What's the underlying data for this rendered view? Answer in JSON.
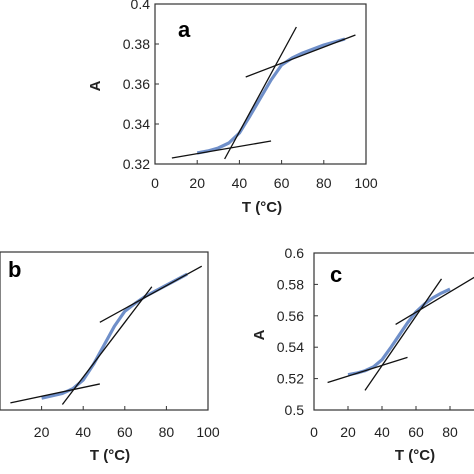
{
  "chart_data": [
    {
      "type": "line",
      "panel_label": "a",
      "xlabel": "T (°C)",
      "ylabel": "A",
      "xlim": [
        0,
        100
      ],
      "ylim": [
        0.32,
        0.4
      ],
      "xticks": [
        "0",
        "20",
        "40",
        "60",
        "80",
        "100"
      ],
      "yticks": [
        "0.32",
        "0.34",
        "0.36",
        "0.38",
        "0.4"
      ],
      "series": [
        {
          "x": [
            20,
            25,
            30,
            35,
            40,
            45,
            50,
            55,
            60,
            65,
            70,
            75,
            80,
            85,
            90
          ],
          "y": [
            0.3255,
            0.3265,
            0.328,
            0.3305,
            0.3355,
            0.344,
            0.353,
            0.362,
            0.3695,
            0.373,
            0.3755,
            0.3775,
            0.3795,
            0.381,
            0.3825
          ]
        }
      ],
      "tangents": [
        {
          "x": [
            8,
            55
          ],
          "y": [
            0.323,
            0.3315
          ]
        },
        {
          "x": [
            33,
            67
          ],
          "y": [
            0.3225,
            0.3885
          ]
        },
        {
          "x": [
            43,
            95
          ],
          "y": [
            0.3635,
            0.3845
          ]
        }
      ]
    },
    {
      "type": "line",
      "panel_label": "b",
      "xlabel": "T (°C)",
      "ylabel": "",
      "xlim": [
        0,
        100
      ],
      "ylim": [
        0.5,
        0.6
      ],
      "xticks": [
        "20",
        "40",
        "60",
        "80",
        "100"
      ],
      "yticks": [],
      "series": [
        {
          "x": [
            20,
            25,
            30,
            35,
            40,
            45,
            50,
            55,
            60,
            65,
            70,
            75,
            80,
            85,
            90
          ],
          "y": [
            0.5075,
            0.509,
            0.5105,
            0.5135,
            0.519,
            0.529,
            0.541,
            0.553,
            0.5625,
            0.5675,
            0.572,
            0.5755,
            0.579,
            0.5825,
            0.586
          ]
        }
      ],
      "tangents": [
        {
          "x": [
            5,
            48
          ],
          "y": [
            0.5045,
            0.5165
          ]
        },
        {
          "x": [
            30,
            73
          ],
          "y": [
            0.5035,
            0.578
          ]
        },
        {
          "x": [
            48,
            97
          ],
          "y": [
            0.5555,
            0.591
          ]
        }
      ]
    },
    {
      "type": "line",
      "panel_label": "c",
      "xlabel": "T (°C)",
      "ylabel": "A",
      "xlim": [
        0,
        100
      ],
      "ylim": [
        0.5,
        0.6
      ],
      "xticks": [
        "0",
        "20",
        "40",
        "60",
        "80"
      ],
      "yticks": [
        "0.5",
        "0.52",
        "0.54",
        "0.56",
        "0.58",
        "0.6"
      ],
      "series": [
        {
          "x": [
            20,
            25,
            30,
            35,
            40,
            45,
            50,
            55,
            60,
            65,
            70,
            75,
            80
          ],
          "y": [
            0.5225,
            0.5235,
            0.525,
            0.5275,
            0.532,
            0.5395,
            0.5475,
            0.5555,
            0.5625,
            0.5675,
            0.5715,
            0.5745,
            0.577
          ]
        }
      ],
      "tangents": [
        {
          "x": [
            8,
            55
          ],
          "y": [
            0.5175,
            0.5335
          ]
        },
        {
          "x": [
            30,
            75
          ],
          "y": [
            0.5125,
            0.5835
          ]
        },
        {
          "x": [
            48,
            95
          ],
          "y": [
            0.5545,
            0.585
          ]
        }
      ]
    }
  ]
}
